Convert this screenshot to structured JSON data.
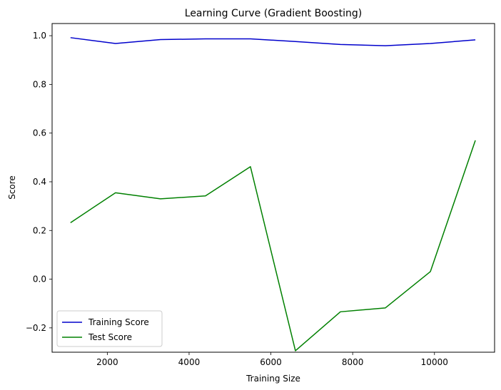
{
  "chart_data": {
    "type": "line",
    "title": "Learning Curve (Gradient Boosting)",
    "xlabel": "Training Size",
    "ylabel": "Score",
    "xlim": [
      650,
      11470
    ],
    "ylim": [
      -0.3,
      1.05
    ],
    "xticks": [
      2000,
      4000,
      6000,
      8000,
      10000
    ],
    "yticks": [
      -0.2,
      0.0,
      0.2,
      0.4,
      0.6,
      0.8,
      1.0
    ],
    "xtick_labels": [
      "2000",
      "4000",
      "6000",
      "8000",
      "10000"
    ],
    "ytick_labels": [
      "−0.2",
      "0.0",
      "0.2",
      "0.4",
      "0.6",
      "0.8",
      "1.0"
    ],
    "x": [
      1100,
      2200,
      3300,
      4400,
      5500,
      6600,
      7700,
      8800,
      9900,
      11000
    ],
    "series": [
      {
        "name": "Training Score",
        "color": "#0000cc",
        "values": [
          0.992,
          0.968,
          0.984,
          0.987,
          0.987,
          0.976,
          0.964,
          0.959,
          0.968,
          0.983
        ]
      },
      {
        "name": "Test Score",
        "color": "#008000",
        "values": [
          0.232,
          0.355,
          0.33,
          0.342,
          0.462,
          -0.294,
          -0.134,
          -0.118,
          0.031,
          0.57
        ]
      }
    ],
    "grid": false,
    "legend": "lower-left"
  }
}
